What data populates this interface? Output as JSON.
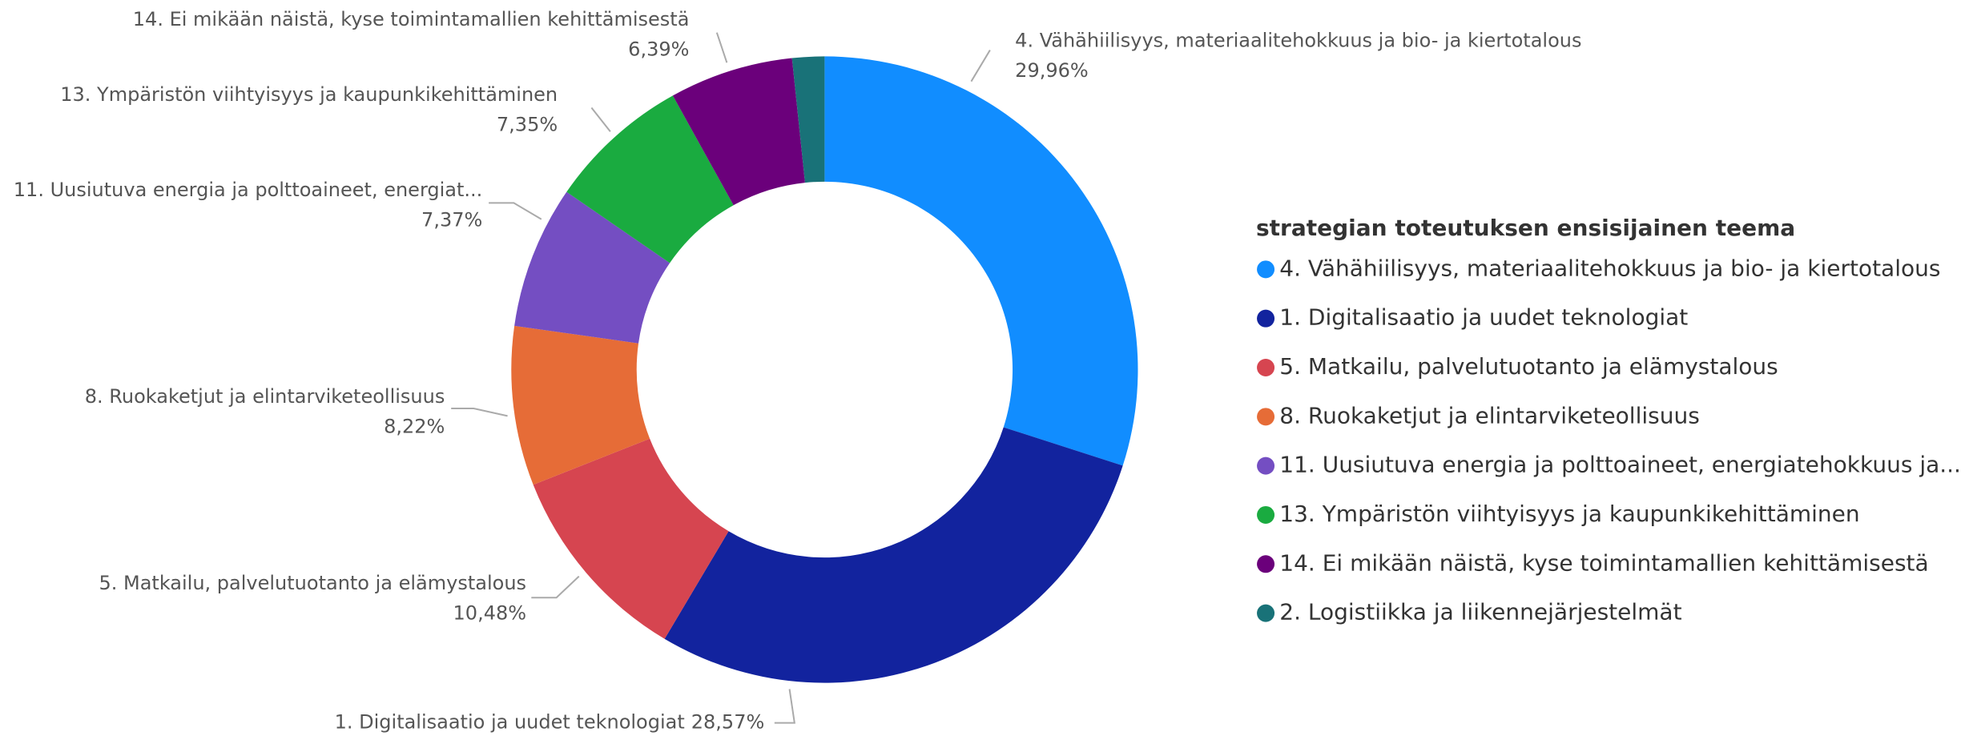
{
  "chart_data": {
    "type": "donut",
    "legend_title": "strategian toteutuksen ensisijainen teema",
    "legend": "right",
    "categories": [
      "4. Vähähiilisyys, materiaalitehokkuus ja bio- ja kiertotalous",
      "1. Digitalisaatio ja uudet teknologiat",
      "5. Matkailu, palvelutuotanto ja elämystalous",
      "8. Ruokaketjut ja elintarviketeollisuus",
      "11. Uusiutuva energia ja polttoaineet, energiatehokkuus ja...",
      "13. Ympäristön viihtyisyys ja kaupunkikehittäminen",
      "14. Ei mikään näistä, kyse toimintamallien kehittämisestä",
      "2. Logistiikka ja liikennejärjestelmät"
    ],
    "label_names": [
      "4. Vähähiilisyys, materiaalitehokkuus ja bio- ja kiertotalous",
      "1. Digitalisaatio ja uudet teknologiat",
      "5. Matkailu, palvelutuotanto ja elämystalous",
      "8. Ruokaketjut ja elintarviketeollisuus",
      "11. Uusiutuva energia ja polttoaineet, energiat...",
      "13. Ympäristön viihtyisyys ja kaupunkikehittäminen",
      "14. Ei mikään näistä, kyse toimintamallien kehittämisestä",
      null
    ],
    "values": [
      29.96,
      28.57,
      10.48,
      8.22,
      7.37,
      7.35,
      6.39,
      1.66
    ],
    "value_labels": [
      "29,96%",
      "28,57%",
      "10,48%",
      "8,22%",
      "7,37%",
      "7,35%",
      "6,39%",
      null
    ],
    "colors": [
      "#118DFF",
      "#12239E",
      "#D64550",
      "#E66C37",
      "#744EC2",
      "#1AAB40",
      "#6B007B",
      "#197278"
    ]
  }
}
